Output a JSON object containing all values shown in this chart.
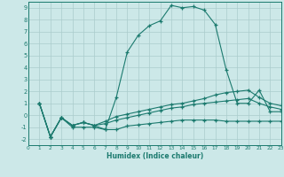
{
  "xlabel": "Humidex (Indice chaleur)",
  "xlim": [
    0,
    23
  ],
  "ylim": [
    -2.5,
    9.5
  ],
  "xticks": [
    0,
    1,
    2,
    3,
    4,
    5,
    6,
    7,
    8,
    9,
    10,
    11,
    12,
    13,
    14,
    15,
    16,
    17,
    18,
    19,
    20,
    21,
    22,
    23
  ],
  "yticks": [
    -2,
    -1,
    0,
    1,
    2,
    3,
    4,
    5,
    6,
    7,
    8,
    9
  ],
  "line_color": "#1b7a6e",
  "bg_color": "#cce8e8",
  "grid_color": "#aacccc",
  "lines": [
    {
      "x": [
        1,
        2,
        3,
        4,
        5,
        6,
        7,
        8,
        9,
        10,
        11,
        12,
        13,
        14,
        15,
        16,
        17,
        18,
        19,
        20,
        21,
        22,
        23
      ],
      "y": [
        1.0,
        -1.8,
        -0.2,
        -0.85,
        -0.6,
        -0.85,
        -1.2,
        1.5,
        5.3,
        6.7,
        7.5,
        7.9,
        9.2,
        9.0,
        9.1,
        8.8,
        7.6,
        3.8,
        1.0,
        1.0,
        2.1,
        0.3,
        0.3
      ]
    },
    {
      "x": [
        1,
        2,
        3,
        4,
        5,
        6,
        7,
        8,
        9,
        10,
        11,
        12,
        13,
        14,
        15,
        16,
        17,
        18,
        19,
        20,
        21,
        22,
        23
      ],
      "y": [
        1.0,
        -1.8,
        -0.2,
        -0.85,
        -0.6,
        -0.85,
        -0.5,
        -0.1,
        0.1,
        0.3,
        0.5,
        0.7,
        0.9,
        1.0,
        1.2,
        1.4,
        1.7,
        1.9,
        2.0,
        2.1,
        1.5,
        1.0,
        0.8
      ]
    },
    {
      "x": [
        1,
        2,
        3,
        4,
        5,
        6,
        7,
        8,
        9,
        10,
        11,
        12,
        13,
        14,
        15,
        16,
        17,
        18,
        19,
        20,
        21,
        22,
        23
      ],
      "y": [
        1.0,
        -1.8,
        -0.2,
        -0.85,
        -0.6,
        -0.85,
        -0.7,
        -0.4,
        -0.2,
        0.0,
        0.2,
        0.4,
        0.6,
        0.7,
        0.9,
        1.0,
        1.1,
        1.2,
        1.3,
        1.4,
        1.0,
        0.7,
        0.5
      ]
    },
    {
      "x": [
        1,
        2,
        3,
        4,
        5,
        6,
        7,
        8,
        9,
        10,
        11,
        12,
        13,
        14,
        15,
        16,
        17,
        18,
        19,
        20,
        21,
        22,
        23
      ],
      "y": [
        1.0,
        -1.8,
        -0.2,
        -1.0,
        -1.0,
        -1.0,
        -1.2,
        -1.2,
        -0.9,
        -0.8,
        -0.7,
        -0.6,
        -0.5,
        -0.4,
        -0.4,
        -0.4,
        -0.4,
        -0.5,
        -0.5,
        -0.5,
        -0.5,
        -0.5,
        -0.5
      ]
    }
  ]
}
